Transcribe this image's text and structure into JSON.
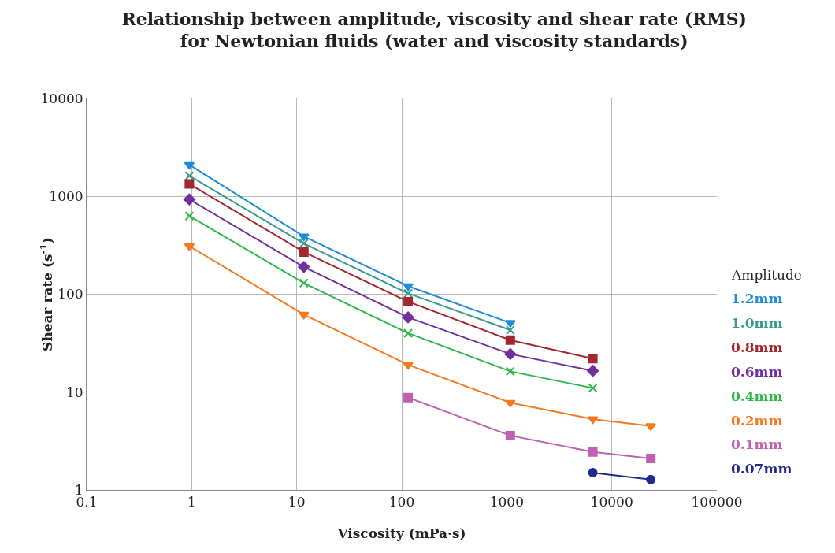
{
  "chart_data": {
    "type": "line",
    "title": "Relationship between amplitude, viscosity and shear rate (RMS)\nfor Newtonian fluids (water and viscosity standards)",
    "xlabel": "Viscosity (mPa·s)",
    "ylabel": "Shear rate (s$^{-1}$)",
    "legend_title": "Amplitude",
    "legend": "right",
    "log": "xy",
    "grid": true,
    "xlim": [
      0.1,
      100000
    ],
    "xticks": [
      0.1,
      1,
      10,
      100,
      1000,
      10000,
      100000
    ],
    "ylim": [
      1,
      10000
    ],
    "yticks": [
      1,
      10,
      100,
      1000,
      10000
    ],
    "series": [
      {
        "name": "1.2mm",
        "color": "#1f8dd6",
        "marker": "triangle",
        "x": [
          0.95,
          11.7,
          115,
          1080
        ],
        "values": [
          2100,
          390,
          121,
          51
        ]
      },
      {
        "name": "1.0mm",
        "color": "#3a9a8f",
        "marker": "cross",
        "x": [
          0.95,
          11.7,
          115,
          1080
        ],
        "values": [
          1620,
          330,
          102,
          43
        ]
      },
      {
        "name": "0.8mm",
        "color": "#a3282e",
        "marker": "square",
        "x": [
          0.95,
          11.7,
          115,
          1080,
          6600
        ],
        "values": [
          1340,
          270,
          84,
          34,
          22
        ]
      },
      {
        "name": "0.6mm",
        "color": "#7030a0",
        "marker": "diamond",
        "x": [
          0.95,
          11.7,
          115,
          1080,
          6600
        ],
        "values": [
          930,
          190,
          58,
          24.5,
          16.5
        ]
      },
      {
        "name": "0.4mm",
        "color": "#2db84a",
        "marker": "cross",
        "x": [
          0.95,
          11.7,
          115,
          1080,
          6600
        ],
        "values": [
          630,
          130,
          40,
          16.3,
          11
        ]
      },
      {
        "name": "0.2mm",
        "color": "#f47a20",
        "marker": "triangle",
        "x": [
          0.95,
          11.7,
          115,
          1080,
          6600,
          23500
        ],
        "values": [
          310,
          62,
          19,
          7.8,
          5.3,
          4.5
        ]
      },
      {
        "name": "0.1mm",
        "color": "#c060b0",
        "marker": "square",
        "x": [
          115,
          1080,
          6600,
          23500
        ],
        "values": [
          8.8,
          3.6,
          2.45,
          2.1
        ]
      },
      {
        "name": "0.07mm",
        "color": "#1f2a8a",
        "marker": "circle",
        "x": [
          6600,
          23500
        ],
        "values": [
          1.5,
          1.28
        ]
      }
    ]
  }
}
